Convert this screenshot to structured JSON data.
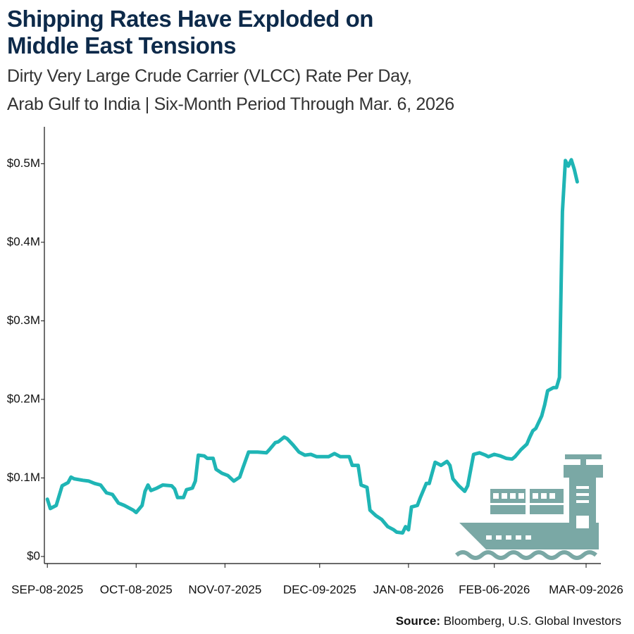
{
  "chart_data": {
    "type": "line",
    "title": [
      "Shipping Rates Have Exploded on",
      "Middle East Tensions"
    ],
    "subtitle": [
      "Dirty Very Large Crude Carrier (VLCC) Rate Per Day,",
      "Arab Gulf to India | Six-Month Period Through Mar. 6, 2026"
    ],
    "source_label": "Source:",
    "source": "Bloomberg, U.S. Global Investors",
    "x": [
      "2025-09-08",
      "2025-09-09",
      "2025-09-11",
      "2025-09-13",
      "2025-09-15",
      "2025-09-16",
      "2025-09-17",
      "2025-09-20",
      "2025-09-22",
      "2025-09-24",
      "2025-09-26",
      "2025-09-28",
      "2025-09-30",
      "2025-10-02",
      "2025-10-04",
      "2025-10-07",
      "2025-10-08",
      "2025-10-10",
      "2025-10-11",
      "2025-10-12",
      "2025-10-13",
      "2025-10-15",
      "2025-10-17",
      "2025-10-20",
      "2025-10-21",
      "2025-10-22",
      "2025-10-24",
      "2025-10-25",
      "2025-10-27",
      "2025-10-28",
      "2025-10-29",
      "2025-10-31",
      "2025-11-01",
      "2025-11-03",
      "2025-11-04",
      "2025-11-06",
      "2025-11-08",
      "2025-11-10",
      "2025-11-12",
      "2025-11-13",
      "2025-11-15",
      "2025-11-18",
      "2025-11-21",
      "2025-11-22",
      "2025-11-24",
      "2025-11-25",
      "2025-11-27",
      "2025-11-28",
      "2025-11-30",
      "2025-12-02",
      "2025-12-04",
      "2025-12-06",
      "2025-12-08",
      "2025-12-12",
      "2025-12-14",
      "2025-12-16",
      "2025-12-19",
      "2025-12-20",
      "2025-12-22",
      "2025-12-23",
      "2025-12-25",
      "2025-12-26",
      "2025-12-28",
      "2025-12-30",
      "2026-01-01",
      "2026-01-03",
      "2026-01-04",
      "2026-01-06",
      "2026-01-07",
      "2026-01-08",
      "2026-01-09",
      "2026-01-11",
      "2026-01-12",
      "2026-01-14",
      "2026-01-15",
      "2026-01-17",
      "2026-01-18",
      "2026-01-19",
      "2026-01-21",
      "2026-01-22",
      "2026-01-23",
      "2026-01-25",
      "2026-01-27",
      "2026-01-28",
      "2026-01-30",
      "2026-02-01",
      "2026-02-03",
      "2026-02-04",
      "2026-02-06",
      "2026-02-08",
      "2026-02-10",
      "2026-02-12",
      "2026-02-13",
      "2026-02-15",
      "2026-02-17",
      "2026-02-18",
      "2026-02-19",
      "2026-02-20",
      "2026-02-22",
      "2026-02-23",
      "2026-02-24",
      "2026-02-26",
      "2026-02-27",
      "2026-02-28",
      "2026-03-01",
      "2026-03-02",
      "2026-03-03",
      "2026-03-04",
      "2026-03-05",
      "2026-03-06"
    ],
    "series": [
      {
        "color": "#1fb5b5",
        "values": [
          73000,
          61000,
          65000,
          90000,
          94000,
          101000,
          99000,
          97000,
          96000,
          93000,
          91000,
          81000,
          79000,
          68000,
          65000,
          59000,
          56000,
          65000,
          83000,
          91000,
          84000,
          87000,
          91000,
          90000,
          86000,
          75000,
          75000,
          85000,
          87000,
          96000,
          129000,
          128000,
          125000,
          125000,
          111000,
          106000,
          103000,
          96000,
          101000,
          112000,
          133000,
          133000,
          132000,
          136000,
          145000,
          146000,
          152000,
          150000,
          142000,
          133000,
          129000,
          130000,
          127000,
          127000,
          131000,
          127000,
          127000,
          116000,
          116000,
          91000,
          88000,
          59000,
          52000,
          47000,
          38000,
          34000,
          31000,
          30000,
          38000,
          34000,
          63000,
          65000,
          75000,
          93000,
          93000,
          120000,
          118000,
          116000,
          121000,
          116000,
          99000,
          90000,
          83000,
          90000,
          130000,
          132000,
          129000,
          127000,
          130000,
          128000,
          125000,
          124000,
          127000,
          136000,
          143000,
          152000,
          160000,
          163000,
          179000,
          193000,
          211000,
          215000,
          215000,
          228000,
          439000,
          504000,
          497000,
          505000,
          493000,
          477000
        ]
      }
    ],
    "xlim": [
      "2025-09-07",
      "2026-03-14"
    ],
    "xticks": [
      {
        "value": "2025-09-08",
        "label": "SEP-08-2025"
      },
      {
        "value": "2025-10-08",
        "label": "OCT-08-2025"
      },
      {
        "value": "2025-11-07",
        "label": "NOV-07-2025"
      },
      {
        "value": "2025-12-09",
        "label": "DEC-09-2025"
      },
      {
        "value": "2026-01-08",
        "label": "JAN-08-2026"
      },
      {
        "value": "2026-02-06",
        "label": "FEB-06-2026"
      },
      {
        "value": "2026-03-09",
        "label": "MAR-09-2026"
      }
    ],
    "ylim": [
      -9000,
      547000
    ],
    "yticks": [
      {
        "value": 0,
        "label": "$0"
      },
      {
        "value": 100000,
        "label": "$0.1M"
      },
      {
        "value": 200000,
        "label": "$0.2M"
      },
      {
        "value": 300000,
        "label": "$0.3M"
      },
      {
        "value": 400000,
        "label": "$0.4M"
      },
      {
        "value": 500000,
        "label": "$0.5M"
      }
    ],
    "grid": false
  }
}
